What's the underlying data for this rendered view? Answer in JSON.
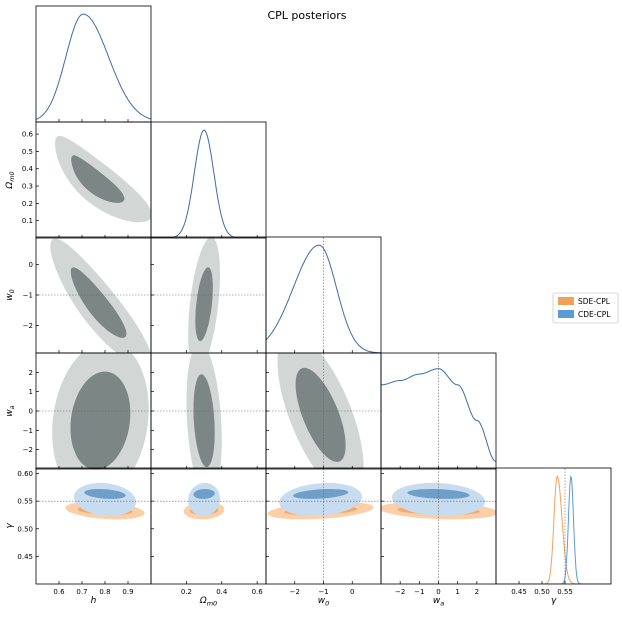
{
  "chart_data": {
    "type": "corner",
    "title": "CPL posteriors",
    "params": [
      {
        "key": "h",
        "label": "h",
        "range": [
          0.5,
          1.0
        ],
        "ticks": [
          0.6,
          0.7,
          0.8,
          0.9
        ],
        "tick_labels": [
          "0.6",
          "0.7",
          "0.8",
          "0.9"
        ]
      },
      {
        "key": "om",
        "label": "Ω_m0",
        "range": [
          0.0,
          0.65
        ],
        "ticks": [
          0.2,
          0.4,
          0.6
        ],
        "tick_labels": [
          "0.2",
          "0.4",
          "0.6"
        ],
        "ytick_labels": [
          "0.1",
          "0.2",
          "0.3",
          "0.4",
          "0.5",
          "0.6"
        ],
        "yticks": [
          0.1,
          0.2,
          0.3,
          0.4,
          0.5,
          0.6
        ],
        "yrange": [
          0.0,
          0.67
        ]
      },
      {
        "key": "w0",
        "label": "w_0",
        "range": [
          -3.0,
          1.0
        ],
        "ticks": [
          -2,
          -1,
          0
        ],
        "tick_labels": [
          "−2",
          "−1",
          "0"
        ],
        "yrange": [
          -2.9,
          0.9
        ],
        "yticks": [
          -2,
          -1,
          0
        ],
        "ytick_labels": [
          "−2",
          "−1",
          "0"
        ],
        "fiducial": -1
      },
      {
        "key": "wa",
        "label": "w_a",
        "range": [
          -3.0,
          3.0
        ],
        "ticks": [
          -2,
          -1,
          0,
          1,
          2
        ],
        "tick_labels": [
          "−2",
          "−1",
          "0",
          "1",
          "2"
        ],
        "yrange": [
          -3.0,
          3.0
        ],
        "yticks": [
          -2,
          -1,
          0,
          1,
          2
        ],
        "ytick_labels": [
          "−2",
          "−1",
          "0",
          "1",
          "2"
        ],
        "fiducial": 0
      },
      {
        "key": "gamma",
        "label": "γ",
        "range": [
          0.4,
          0.65
        ],
        "ticks": [
          0.45,
          0.5,
          0.55
        ],
        "tick_labels": [
          "0.45",
          "0.50",
          "0.55"
        ],
        "yrange": [
          0.4,
          0.61
        ],
        "yticks": [
          0.45,
          0.5,
          0.55,
          0.6
        ],
        "ytick_labels": [
          "0.45",
          "0.50",
          "0.55",
          "0.60"
        ],
        "fiducial": 0.55
      }
    ],
    "legend": [
      {
        "name": "SDE-CPL",
        "color": "#f5a05a"
      },
      {
        "name": "CDE-CPL",
        "color": "#5b9bd5"
      }
    ],
    "marginals": {
      "h": {
        "mean": 0.705,
        "sigma_left": 0.075,
        "sigma_right": 0.11
      },
      "om": {
        "mean": 0.3,
        "sigma": 0.055
      },
      "w0": {
        "mean": -1.15,
        "sigma_left": 0.9,
        "sigma_right": 0.6
      },
      "wa_curve": {
        "x": [
          -3.0,
          -2.0,
          -1.0,
          0.0,
          1.0,
          2.0,
          3.0
        ],
        "y": [
          0.78,
          0.82,
          0.88,
          0.93,
          0.78,
          0.45,
          0.07
        ]
      },
      "gamma_sde": {
        "mean": 0.533,
        "sigma": 0.007
      },
      "gamma_cde": {
        "mean": 0.563,
        "sigma": 0.0055
      }
    },
    "colors": {
      "outer_contour": "#d2d7d6",
      "inner_contour": "#7c8684",
      "line": "#3b6ea5",
      "sde_fill": "#fbcfa7",
      "sde_inner": "#f7a86b",
      "cde_fill": "#c7dcef",
      "cde_inner": "#6f9ec9",
      "fiducial_line": "#666666"
    }
  }
}
